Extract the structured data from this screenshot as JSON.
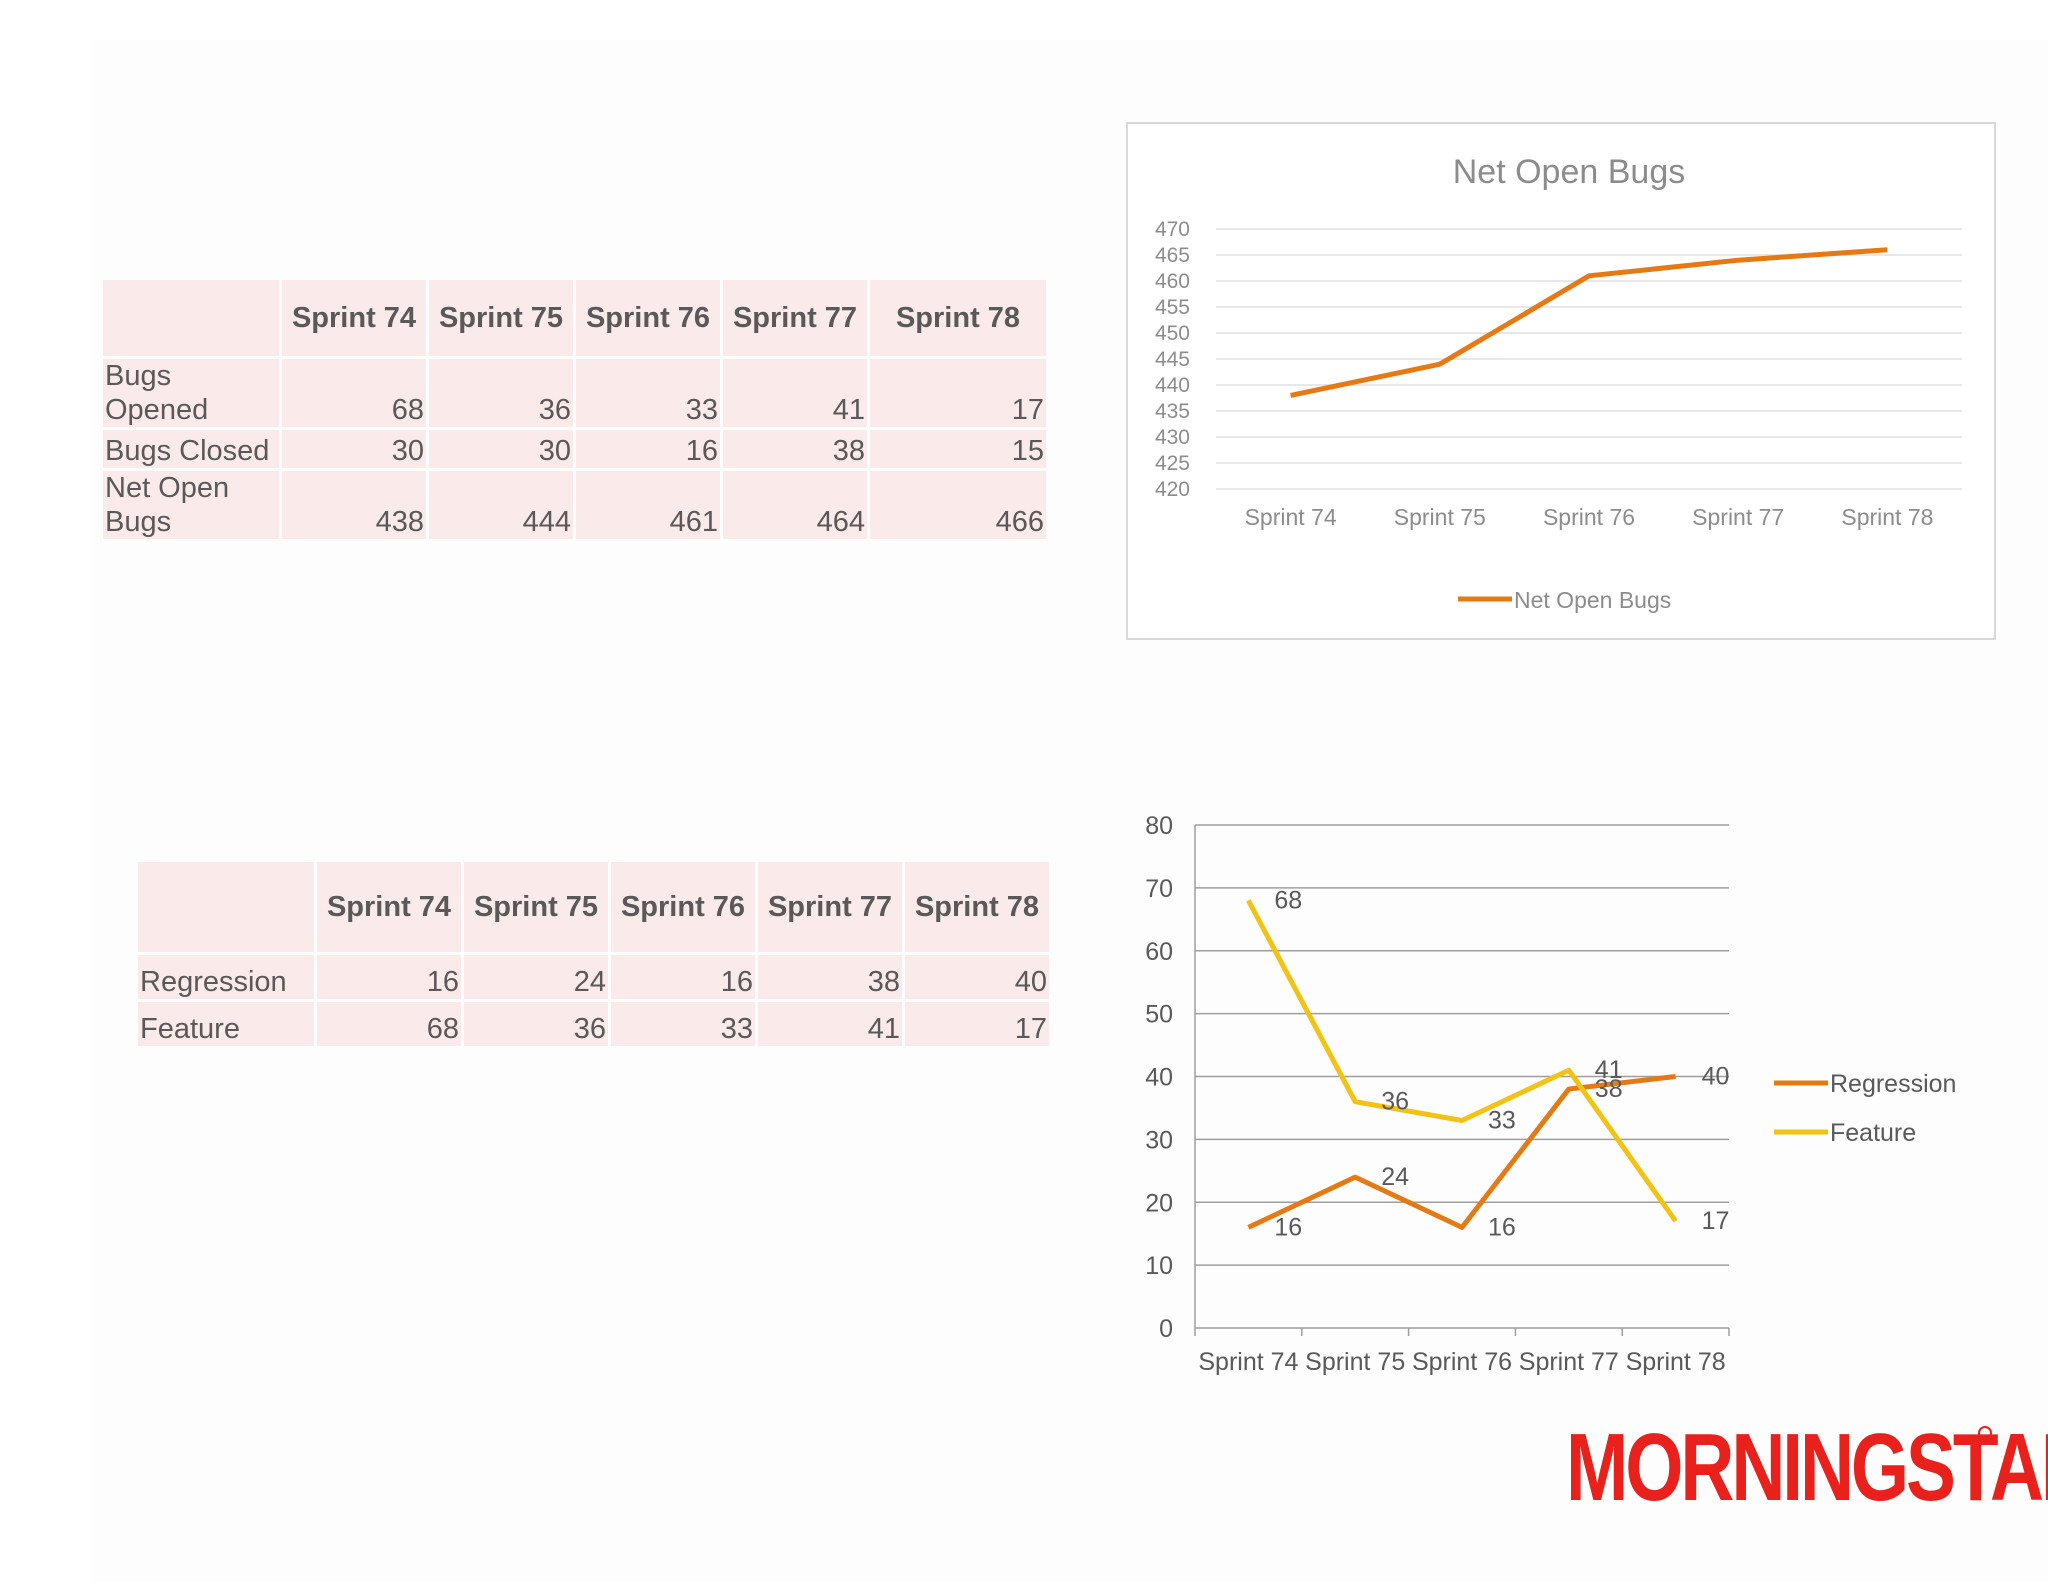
{
  "table1": {
    "headers": [
      "",
      "Sprint 74",
      "Sprint 75",
      "Sprint 76",
      "Sprint 77",
      "Sprint 78"
    ],
    "rows": [
      {
        "label": "Bugs Opened",
        "values": [
          "68",
          "36",
          "33",
          "41",
          "17"
        ]
      },
      {
        "label": "Bugs Closed",
        "values": [
          "30",
          "30",
          "16",
          "38",
          "15"
        ]
      },
      {
        "label": "Net Open Bugs",
        "values": [
          "438",
          "444",
          "461",
          "464",
          "466"
        ]
      }
    ]
  },
  "table2": {
    "headers": [
      "",
      "Sprint 74",
      "Sprint 75",
      "Sprint 76",
      "Sprint 77",
      "Sprint 78"
    ],
    "rows": [
      {
        "label": "Regression",
        "values": [
          "16",
          "24",
          "16",
          "38",
          "40"
        ]
      },
      {
        "label": "Feature",
        "values": [
          "68",
          "36",
          "33",
          "41",
          "17"
        ]
      }
    ]
  },
  "logo": {
    "text": "MORNINGSTAR"
  },
  "colors": {
    "orange": "#e57a14",
    "yellow": "#f2c214",
    "logo_red": "#e8211c"
  },
  "chart_data": [
    {
      "type": "line",
      "title": "Net Open Bugs",
      "categories": [
        "Sprint 74",
        "Sprint 75",
        "Sprint 76",
        "Sprint 77",
        "Sprint 78"
      ],
      "series": [
        {
          "name": "Net Open Bugs",
          "values": [
            438,
            444,
            461,
            464,
            466
          ]
        }
      ],
      "ylim": [
        420,
        470
      ],
      "ytick_step": 5,
      "grid": true,
      "legend": "bottom"
    },
    {
      "type": "line",
      "title": "",
      "categories": [
        "Sprint 74",
        "Sprint 75",
        "Sprint 76",
        "Sprint 77",
        "Sprint 78"
      ],
      "series": [
        {
          "name": "Regression",
          "values": [
            16,
            24,
            16,
            38,
            40
          ]
        },
        {
          "name": "Feature",
          "values": [
            68,
            36,
            33,
            41,
            17
          ]
        }
      ],
      "ylim": [
        0,
        80
      ],
      "ytick_step": 10,
      "grid": true,
      "data_labels": true,
      "legend": "right"
    }
  ]
}
